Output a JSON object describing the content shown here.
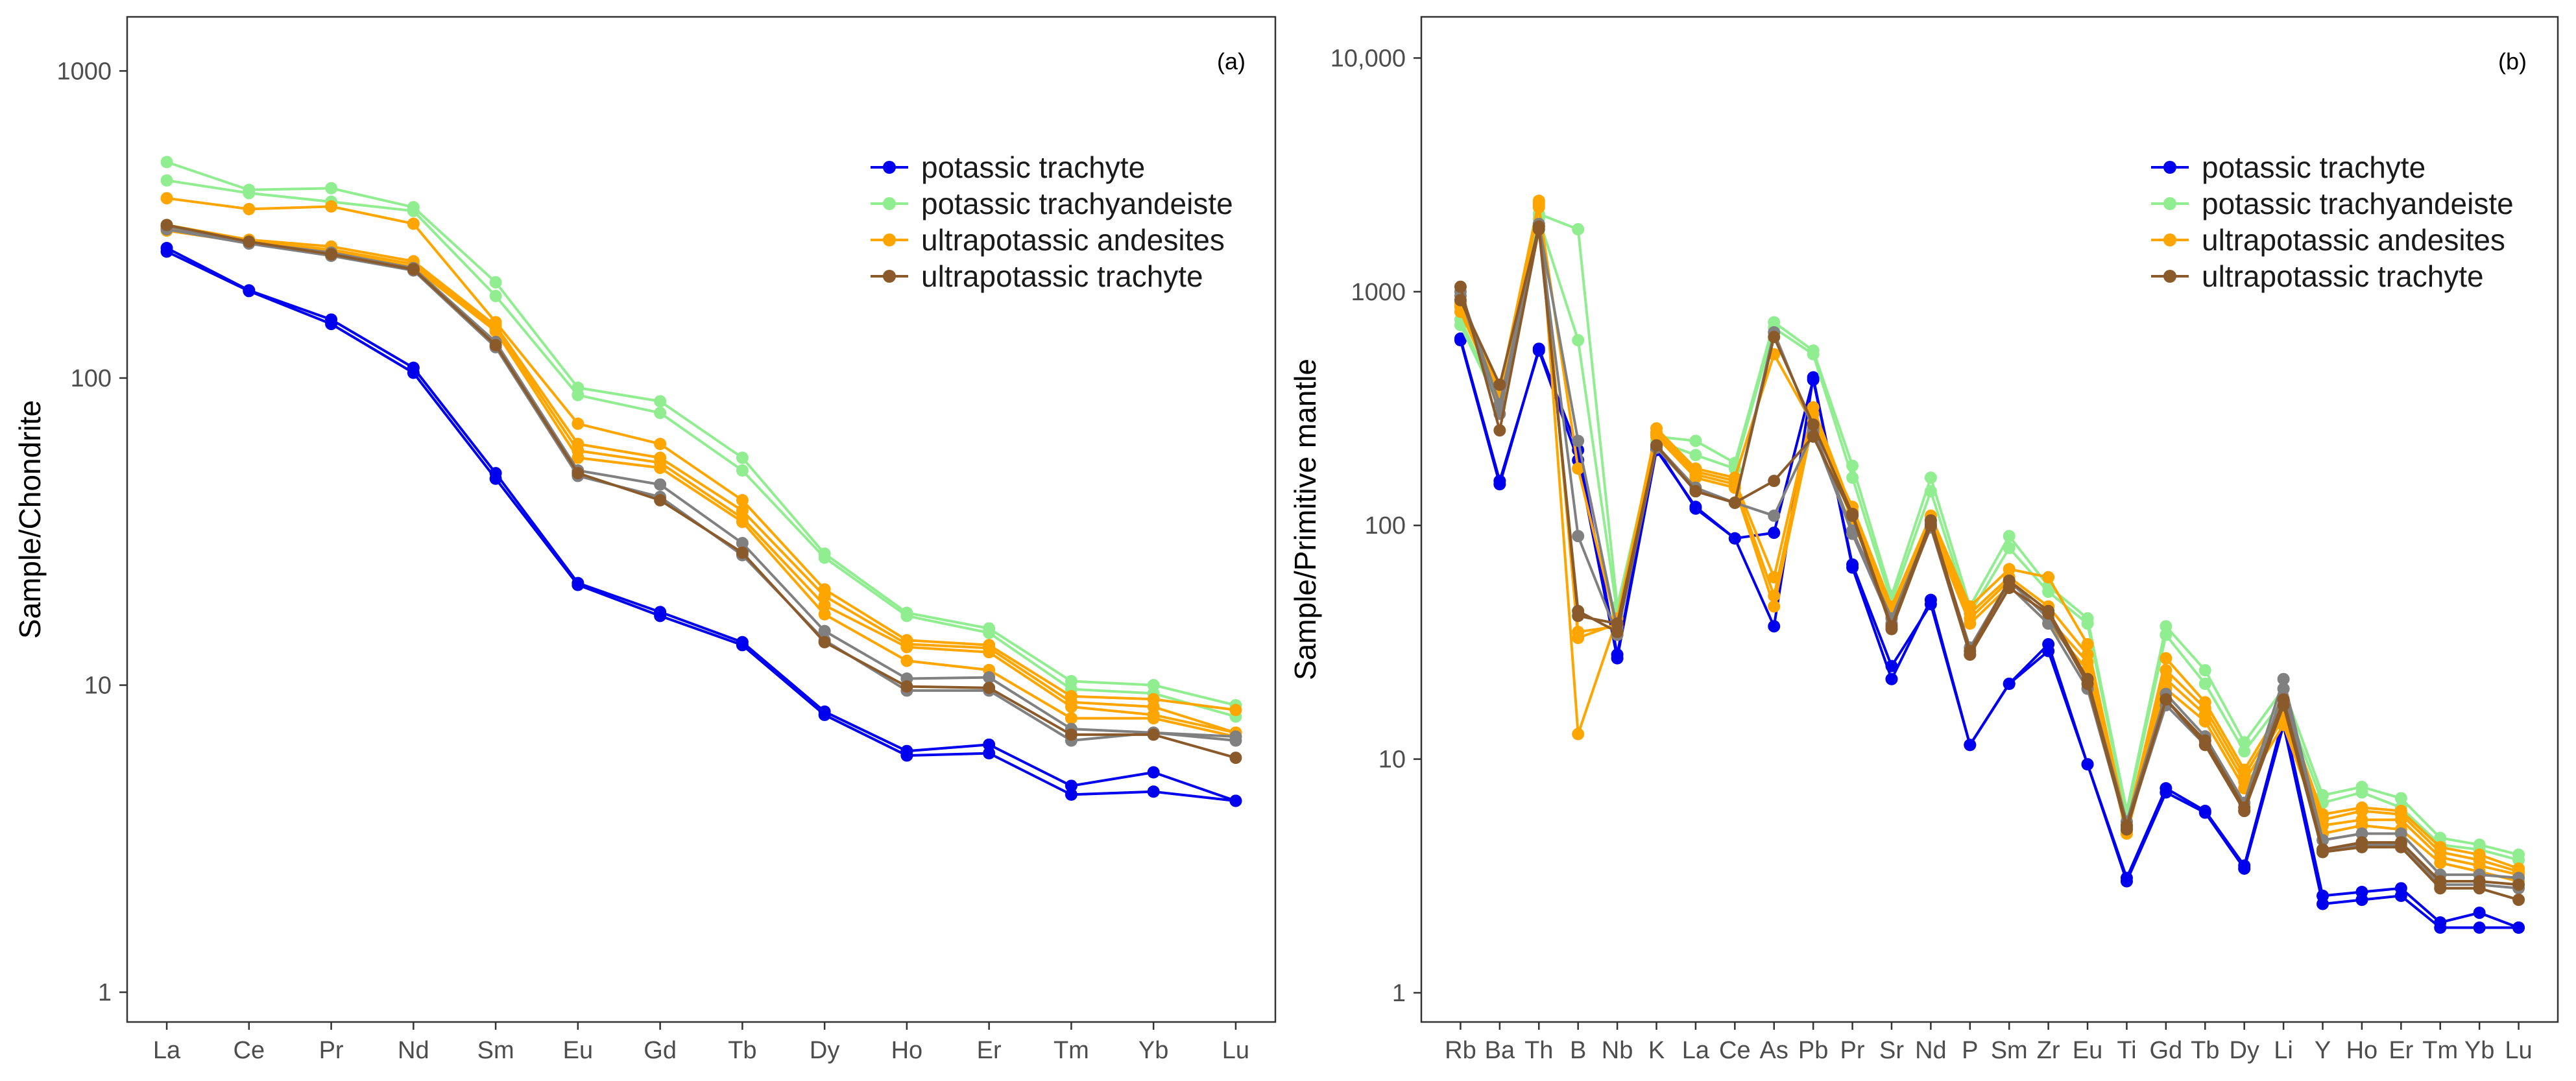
{
  "chart_data": [
    {
      "type": "line",
      "panel_label": "(a)",
      "xlabel": "",
      "ylabel": "Sample/Chondrite",
      "y_scale": "log",
      "ylim": [
        0.8,
        1500
      ],
      "y_ticks": [
        1,
        10,
        100,
        1000
      ],
      "y_tick_labels": [
        "1",
        "10",
        "100",
        "1000"
      ],
      "grid": false,
      "legend_position": "top-right",
      "categories": [
        "La",
        "Ce",
        "Pr",
        "Nd",
        "Sm",
        "Eu",
        "Gd",
        "Tb",
        "Dy",
        "Ho",
        "Er",
        "Tm",
        "Yb",
        "Lu"
      ],
      "legend": [
        {
          "label": "potassic trachyte",
          "color": "#0000ee"
        },
        {
          "label": "potassic trachyandeiste",
          "color": "#90ee90"
        },
        {
          "label": "ultrapotassic andesites",
          "color": "#ffa500"
        },
        {
          "label": "ultrapotassic trachyte",
          "color": "#8b5a2b"
        }
      ],
      "series": [
        {
          "group": "potassic trachyte",
          "color": "#0000ee",
          "values": [
            265,
            193,
            155,
            108,
            49,
            21.5,
            17.3,
            13.8,
            8.2,
            6.1,
            6.4,
            4.7,
            5.2,
            4.2
          ]
        },
        {
          "group": "potassic trachyte",
          "color": "#0000ee",
          "values": [
            258,
            192,
            150,
            104,
            47,
            21.2,
            16.8,
            13.5,
            8.0,
            5.9,
            6.0,
            4.4,
            4.5,
            4.2
          ]
        },
        {
          "group": "potassic trachyandeiste",
          "color": "#90ee90",
          "values": [
            505,
            410,
            415,
            360,
            205,
            93,
            84,
            55,
            26.8,
            17.2,
            15.3,
            10.3,
            10.0,
            8.6
          ]
        },
        {
          "group": "potassic trachyandeiste",
          "color": "#90ee90",
          "values": [
            440,
            400,
            375,
            350,
            185,
            88,
            77,
            50,
            26.0,
            16.8,
            14.8,
            9.7,
            9.4,
            7.9
          ]
        },
        {
          "group": "ultrapotassic andesites",
          "color": "#ffa500",
          "values": [
            385,
            355,
            362,
            318,
            152,
            71,
            61,
            40,
            20.5,
            14.0,
            13.5,
            9.2,
            9.0,
            8.3
          ]
        },
        {
          "group": "ultrapotassic andesites",
          "color": "#ffa500",
          "values": [
            315,
            282,
            268,
            240,
            148,
            61,
            55,
            37,
            19.5,
            13.6,
            13.2,
            8.8,
            8.5,
            7.0
          ]
        },
        {
          "group": "ultrapotassic andesites",
          "color": "#ffa500",
          "values": [
            308,
            278,
            262,
            235,
            145,
            58,
            53,
            35,
            18.2,
            13.3,
            12.8,
            8.5,
            8.0,
            7.0
          ]
        },
        {
          "group": "ultrapotassic andesites",
          "color": "#ffa500",
          "values": [
            302,
            276,
            258,
            230,
            142,
            55,
            51,
            34,
            17.0,
            12.0,
            11.2,
            7.8,
            7.8,
            6.8
          ]
        },
        {
          "group": "ultrapotassic trachyte",
          "color": "#808080",
          "values": [
            312,
            276,
            256,
            228,
            131,
            50,
            45,
            29,
            15.0,
            10.5,
            10.6,
            7.2,
            7.0,
            6.8
          ]
        },
        {
          "group": "ultrapotassic trachyte",
          "color": "#808080",
          "values": [
            305,
            274,
            250,
            224,
            126,
            48,
            41,
            26.5,
            14.0,
            9.6,
            9.6,
            6.6,
            7.0,
            6.6
          ]
        },
        {
          "group": "ultrapotassic trachyte",
          "color": "#8b5a2b",
          "values": [
            315,
            278,
            253,
            226,
            128,
            49,
            40,
            27,
            13.8,
            9.9,
            9.8,
            6.9,
            6.9,
            5.8
          ]
        }
      ]
    },
    {
      "type": "line",
      "panel_label": "(b)",
      "xlabel": "",
      "ylabel": "Sample/Primitive mantle",
      "y_scale": "log",
      "ylim": [
        0.75,
        15000
      ],
      "y_ticks": [
        1,
        10,
        100,
        1000,
        10000
      ],
      "y_tick_labels": [
        "1",
        "10",
        "100",
        "1000",
        "10,000"
      ],
      "grid": false,
      "legend_position": "top-right",
      "categories": [
        "Rb",
        "Ba",
        "Th",
        "B",
        "Nb",
        "K",
        "La",
        "Ce",
        "As",
        "Pb",
        "Pr",
        "Sr",
        "Nd",
        "P",
        "Sm",
        "Zr",
        "Eu",
        "Ti",
        "Gd",
        "Tb",
        "Dy",
        "Li",
        "Y",
        "Ho",
        "Er",
        "Tm",
        "Yb",
        "Lu"
      ],
      "legend": [
        {
          "label": "potassic trachyte",
          "color": "#0000ee"
        },
        {
          "label": "potassic trachyandeiste",
          "color": "#90ee90"
        },
        {
          "label": "ultrapotassic andesites",
          "color": "#ffa500"
        },
        {
          "label": "ultrapotassic trachyte",
          "color": "#8b5a2b"
        }
      ],
      "series": [
        {
          "group": "potassic trachyte",
          "color": "#0000ee",
          "values": [
            620,
            150,
            570,
            210,
            28,
            215,
            118,
            88,
            37,
            430,
            66,
            22,
            48,
            11.5,
            21,
            31,
            9.5,
            3.1,
            7.5,
            6.0,
            3.5,
            15,
            2.6,
            2.7,
            2.8,
            2.0,
            2.2,
            1.9
          ]
        },
        {
          "group": "potassic trachyte",
          "color": "#0000ee",
          "values": [
            630,
            155,
            560,
            190,
            27,
            210,
            120,
            88,
            93,
            420,
            68,
            25,
            46,
            11.5,
            21,
            29,
            9.5,
            3.0,
            7.2,
            5.9,
            3.4,
            14,
            2.4,
            2.5,
            2.6,
            1.9,
            1.9,
            1.9
          ]
        },
        {
          "group": "potassic trachyandeiste",
          "color": "#90ee90",
          "values": [
            760,
            330,
            2150,
            1850,
            45,
            240,
            230,
            185,
            740,
            560,
            180,
            50,
            160,
            45,
            90,
            55,
            40,
            6.0,
            37,
            24,
            11.8,
            20,
            7.0,
            7.6,
            6.8,
            4.6,
            4.3,
            3.9
          ]
        },
        {
          "group": "potassic trachyandeiste",
          "color": "#90ee90",
          "values": [
            720,
            320,
            2050,
            620,
            42,
            230,
            200,
            175,
            700,
            540,
            160,
            47,
            140,
            42,
            80,
            52,
            38,
            5.7,
            34,
            21,
            10.8,
            18,
            6.5,
            7.2,
            6.2,
            4.3,
            4.1,
            3.7
          ]
        },
        {
          "group": "ultrapotassic andesites",
          "color": "#ffa500",
          "values": [
            900,
            380,
            2450,
            12.8,
            40,
            260,
            175,
            160,
            540,
            270,
            120,
            45,
            110,
            45,
            65,
            60,
            31,
            5.2,
            27,
            17.5,
            9.0,
            17,
            5.8,
            6.2,
            6.0,
            4.2,
            3.9,
            3.4
          ]
        },
        {
          "group": "ultrapotassic andesites",
          "color": "#ffa500",
          "values": [
            880,
            370,
            2400,
            33,
            38,
            250,
            170,
            155,
            60,
            320,
            115,
            44,
            105,
            42,
            60,
            45,
            28,
            5.0,
            24,
            16.5,
            8.5,
            16,
            5.5,
            6.0,
            5.8,
            4.0,
            3.7,
            3.3
          ]
        },
        {
          "group": "ultrapotassic andesites",
          "color": "#ffa500",
          "values": [
            860,
            360,
            2350,
            35,
            37,
            245,
            165,
            150,
            50,
            300,
            110,
            43,
            100,
            40,
            58,
            40,
            26,
            4.9,
            22,
            15.5,
            8.0,
            15,
            5.2,
            5.5,
            5.5,
            3.8,
            3.5,
            3.2
          ]
        },
        {
          "group": "ultrapotassic andesites",
          "color": "#ffa500",
          "values": [
            820,
            350,
            2300,
            175,
            36,
            240,
            160,
            145,
            45,
            280,
            105,
            41,
            98,
            38,
            55,
            38,
            24,
            4.8,
            20,
            14.5,
            7.5,
            14,
            4.8,
            5.2,
            5.0,
            3.6,
            3.3,
            3.0
          ]
        },
        {
          "group": "ultrapotassic trachyte",
          "color": "#808080",
          "values": [
            1000,
            330,
            1950,
            230,
            36,
            220,
            145,
            125,
            670,
            260,
            95,
            40,
            102,
            30,
            58,
            40,
            22,
            5.4,
            19,
            12.5,
            6.5,
            22,
            4.5,
            4.8,
            4.8,
            3.2,
            3.2,
            3.1
          ]
        },
        {
          "group": "ultrapotassic trachyte",
          "color": "#808080",
          "values": [
            960,
            300,
            1900,
            90,
            34,
            215,
            140,
            125,
            110,
            250,
            92,
            38,
            98,
            28,
            55,
            38,
            20,
            5.1,
            17,
            11.5,
            6.0,
            20,
            4.1,
            4.3,
            4.3,
            2.9,
            2.9,
            2.8
          ]
        },
        {
          "group": "ultrapotassic trachyte",
          "color": "#8b5a2b",
          "values": [
            1050,
            255,
            1850,
            43,
            35,
            220,
            140,
            125,
            155,
            240,
            110,
            36,
            100,
            28,
            54,
            42,
            21,
            5.0,
            18,
            11.5,
            6.0,
            17,
            4.0,
            4.2,
            4.2,
            2.8,
            2.8,
            2.5
          ]
        },
        {
          "group": "ultrapotassic trachyte",
          "color": "#8b5a2b",
          "values": [
            920,
            400,
            1900,
            41,
            38,
            220,
            140,
            125,
            640,
            270,
            112,
            37,
            105,
            29,
            58,
            43,
            22,
            5.2,
            18,
            12,
            6.2,
            18,
            4.1,
            4.4,
            4.4,
            3.0,
            3.0,
            2.9
          ]
        }
      ]
    }
  ]
}
